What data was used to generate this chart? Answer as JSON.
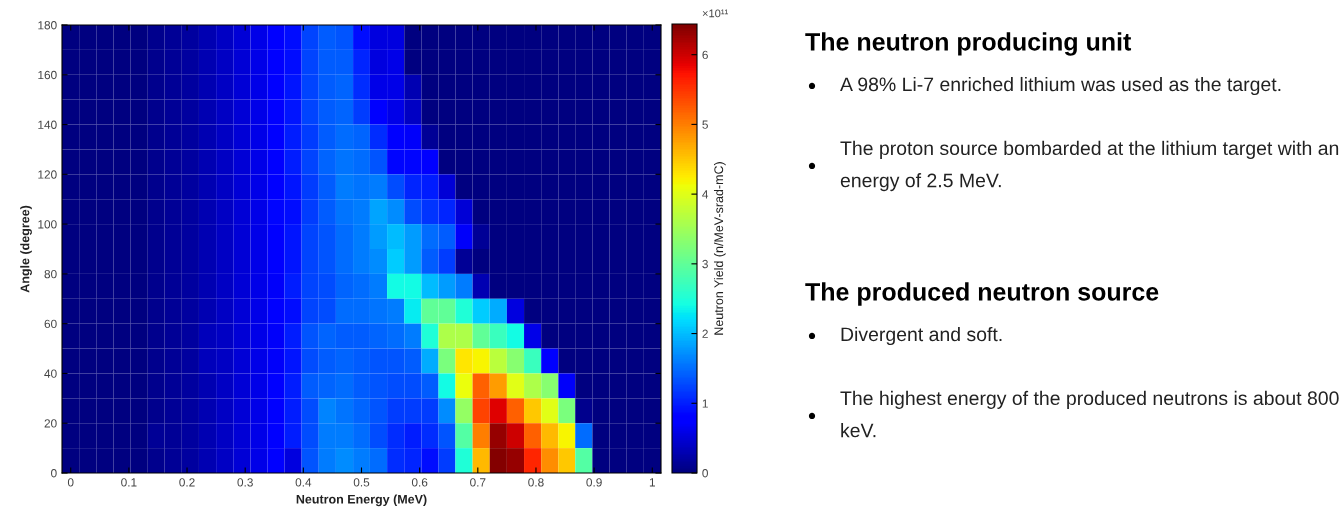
{
  "chart_data": [
    {
      "type": "heatmap",
      "xlabel": "Neutron Energy (MeV)",
      "ylabel": "Angle (degree)",
      "clabel": "Neutron Yield (n/MeV-srad-mC)",
      "annotations": [
        "×10¹¹"
      ],
      "x": [
        0,
        0.029,
        0.059,
        0.088,
        0.118,
        0.147,
        0.176,
        0.206,
        0.235,
        0.265,
        0.294,
        0.324,
        0.353,
        0.382,
        0.412,
        0.441,
        0.471,
        0.5,
        0.529,
        0.559,
        0.588,
        0.618,
        0.647,
        0.676,
        0.706,
        0.735,
        0.765,
        0.794,
        0.824,
        0.853,
        0.882,
        0.912,
        0.941,
        0.971,
        1
      ],
      "y": [
        175,
        165,
        155,
        145,
        135,
        125,
        115,
        105,
        95,
        85,
        75,
        65,
        55,
        45,
        35,
        25,
        15,
        5
      ],
      "xlim": [
        -0.015,
        1.015
      ],
      "xticks": [
        0,
        0.1,
        0.2,
        0.3,
        0.4,
        0.5,
        0.6,
        0.7,
        0.8,
        0.9,
        1
      ],
      "ylim": [
        0,
        180
      ],
      "yticks": [
        0,
        20,
        40,
        60,
        80,
        100,
        120,
        140,
        160,
        180
      ],
      "clim": [
        0,
        6.44
      ],
      "cticks": [
        0,
        1,
        2,
        3,
        4,
        5,
        6
      ],
      "cells": [
        [
          0,
          0,
          0,
          0,
          0,
          0.1,
          0.15,
          0.2,
          0.3,
          0.4,
          0.5,
          0.6,
          0.75,
          0.9,
          1.25,
          1.4,
          1.35,
          0.9,
          0.55,
          0.55,
          0,
          0,
          0,
          0,
          0,
          0,
          0,
          0,
          0,
          0,
          0,
          0,
          0,
          0,
          0
        ],
        [
          0,
          0,
          0,
          0,
          0,
          0.1,
          0.15,
          0.2,
          0.3,
          0.4,
          0.5,
          0.6,
          0.75,
          0.9,
          1.25,
          1.4,
          1.4,
          1.05,
          0.55,
          0.6,
          0,
          0,
          0,
          0,
          0,
          0,
          0,
          0,
          0,
          0,
          0,
          0,
          0,
          0,
          0
        ],
        [
          0,
          0,
          0,
          0,
          0,
          0.1,
          0.15,
          0.2,
          0.3,
          0.4,
          0.5,
          0.6,
          0.75,
          0.95,
          1.25,
          1.4,
          1.45,
          1.1,
          0.6,
          0.6,
          0.3,
          0,
          0,
          0,
          0,
          0,
          0,
          0,
          0,
          0,
          0,
          0,
          0,
          0,
          0
        ],
        [
          0,
          0,
          0,
          0,
          0,
          0.1,
          0.15,
          0.2,
          0.3,
          0.4,
          0.5,
          0.6,
          0.8,
          0.95,
          1.25,
          1.4,
          1.45,
          1.2,
          0.8,
          0.6,
          0.4,
          0,
          0,
          0,
          0,
          0,
          0,
          0,
          0,
          0,
          0,
          0,
          0,
          0,
          0
        ],
        [
          0,
          0,
          0,
          0,
          0,
          0.1,
          0.15,
          0.2,
          0.3,
          0.4,
          0.5,
          0.6,
          0.8,
          1.0,
          1.2,
          1.4,
          1.5,
          1.45,
          1.1,
          0.75,
          0.7,
          0.15,
          0,
          0,
          0,
          0,
          0,
          0,
          0,
          0,
          0,
          0,
          0,
          0,
          0
        ],
        [
          0,
          0,
          0,
          0,
          0,
          0.1,
          0.15,
          0.2,
          0.3,
          0.4,
          0.5,
          0.6,
          0.8,
          1.0,
          1.25,
          1.45,
          1.55,
          1.5,
          1.35,
          0.85,
          0.85,
          0.75,
          0,
          0,
          0,
          0,
          0,
          0,
          0,
          0,
          0,
          0,
          0,
          0,
          0
        ],
        [
          0,
          0,
          0,
          0,
          0,
          0.1,
          0.15,
          0.2,
          0.3,
          0.4,
          0.5,
          0.6,
          0.8,
          0.95,
          1.2,
          1.4,
          1.6,
          1.55,
          1.6,
          1.3,
          1.05,
          1.0,
          0.5,
          0,
          0,
          0,
          0,
          0,
          0,
          0,
          0,
          0,
          0,
          0,
          0
        ],
        [
          0,
          0,
          0,
          0,
          0,
          0.1,
          0.15,
          0.2,
          0.3,
          0.4,
          0.5,
          0.6,
          0.85,
          0.9,
          1.2,
          1.4,
          1.55,
          1.6,
          1.85,
          1.7,
          1.3,
          1.15,
          1.05,
          0.5,
          0,
          0,
          0,
          0,
          0,
          0,
          0,
          0,
          0,
          0,
          0
        ],
        [
          0,
          0,
          0,
          0,
          0,
          0.1,
          0.15,
          0.2,
          0.3,
          0.4,
          0.5,
          0.6,
          0.8,
          0.95,
          1.25,
          1.35,
          1.5,
          1.6,
          1.8,
          2.0,
          1.8,
          1.5,
          1.4,
          0.7,
          0.15,
          0,
          0,
          0,
          0,
          0,
          0,
          0,
          0,
          0,
          0
        ],
        [
          0,
          0,
          0,
          0,
          0,
          0.1,
          0.15,
          0.2,
          0.3,
          0.4,
          0.5,
          0.6,
          0.75,
          0.95,
          1.25,
          1.35,
          1.5,
          1.6,
          1.7,
          2.1,
          1.8,
          1.4,
          1.2,
          0.15,
          0,
          0,
          0,
          0,
          0,
          0,
          0,
          0,
          0,
          0,
          0
        ],
        [
          0,
          0,
          0,
          0,
          0,
          0.1,
          0.15,
          0.2,
          0.3,
          0.4,
          0.5,
          0.6,
          0.7,
          1.0,
          1.25,
          1.3,
          1.45,
          1.5,
          1.6,
          2.4,
          2.4,
          2.0,
          1.8,
          1.6,
          0.3,
          0,
          0,
          0,
          0,
          0,
          0,
          0,
          0,
          0,
          0
        ],
        [
          0,
          0,
          0,
          0,
          0,
          0.1,
          0.15,
          0.2,
          0.3,
          0.4,
          0.5,
          0.6,
          0.75,
          0.9,
          1.25,
          1.3,
          1.5,
          1.5,
          1.55,
          1.6,
          2.3,
          3.0,
          3.0,
          2.5,
          2.1,
          1.9,
          0.55,
          0,
          0,
          0,
          0,
          0,
          0,
          0,
          0
        ],
        [
          0,
          0,
          0,
          0,
          0,
          0.1,
          0.15,
          0.2,
          0.35,
          0.4,
          0.5,
          0.6,
          0.7,
          1.0,
          1.35,
          1.45,
          1.4,
          1.4,
          1.45,
          1.5,
          1.6,
          2.5,
          3.6,
          3.6,
          3.0,
          2.7,
          2.4,
          0.6,
          0,
          0,
          0,
          0,
          0,
          0,
          0
        ],
        [
          0,
          0,
          0,
          0,
          0,
          0.1,
          0.15,
          0.2,
          0.35,
          0.4,
          0.5,
          0.6,
          0.7,
          0.95,
          1.3,
          1.4,
          1.45,
          1.4,
          1.35,
          1.35,
          1.4,
          1.9,
          3.2,
          4.3,
          4.2,
          3.7,
          3.3,
          2.7,
          0.75,
          0,
          0,
          0,
          0,
          0,
          0
        ],
        [
          0,
          0,
          0,
          0,
          0,
          0.1,
          0.15,
          0.2,
          0.3,
          0.4,
          0.5,
          0.6,
          0.75,
          1.0,
          1.4,
          1.45,
          1.5,
          1.4,
          1.35,
          1.3,
          1.3,
          1.4,
          2.4,
          4.1,
          5.2,
          4.8,
          4.0,
          3.6,
          3.3,
          0.7,
          0,
          0,
          0,
          0,
          0
        ],
        [
          0,
          0,
          0,
          0,
          0,
          0.1,
          0.15,
          0.2,
          0.3,
          0.4,
          0.5,
          0.6,
          0.8,
          1.0,
          1.3,
          1.65,
          1.55,
          1.45,
          1.35,
          1.2,
          1.2,
          1.2,
          1.7,
          3.4,
          5.4,
          5.9,
          5.2,
          4.5,
          4.0,
          3.2,
          0.1,
          0,
          0,
          0,
          0
        ],
        [
          0,
          0,
          0,
          0,
          0,
          0.15,
          0.15,
          0.2,
          0.3,
          0.4,
          0.5,
          0.6,
          0.8,
          1.0,
          1.3,
          1.6,
          1.6,
          1.5,
          1.3,
          1.1,
          1.0,
          1.1,
          1.35,
          2.9,
          5.0,
          6.3,
          6.0,
          5.2,
          4.6,
          4.2,
          1.5,
          0,
          0,
          0,
          0
        ],
        [
          0,
          0,
          0,
          0,
          0,
          0.1,
          0.15,
          0.2,
          0.3,
          0.4,
          0.5,
          0.6,
          0.8,
          0.55,
          1.35,
          1.6,
          1.7,
          1.6,
          1.5,
          1.1,
          1.05,
          0.9,
          1.2,
          2.5,
          4.6,
          6.4,
          6.3,
          5.6,
          4.9,
          4.5,
          2.9,
          0,
          0,
          0,
          0
        ]
      ]
    },
    {
      "type": "other",
      "title": "The neutron producing unit",
      "annotations": [
        "A 98% Li-7 enriched lithium was used as the target.",
        "The proton source bombarded at the lithium target with an energy of 2.5 MeV."
      ]
    },
    {
      "type": "other",
      "title": "The produced neutron source",
      "annotations": [
        "Divergent and soft.",
        "The highest energy of the produced neutrons is about 800 keV."
      ]
    }
  ]
}
